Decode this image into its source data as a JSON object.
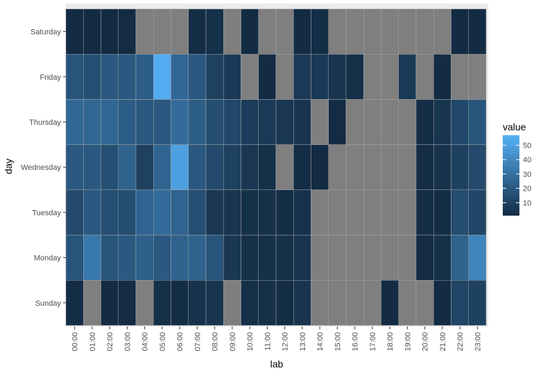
{
  "chart_data": {
    "type": "heatmap",
    "title": "",
    "xlabel": "lab",
    "ylabel": "day",
    "x": [
      "00:00",
      "01:00",
      "02:00",
      "03:00",
      "04:00",
      "05:00",
      "06:00",
      "07:00",
      "08:00",
      "09:00",
      "10:00",
      "11:00",
      "12:00",
      "13:00",
      "14:00",
      "15:00",
      "16:00",
      "17:00",
      "18:00",
      "19:00",
      "20:00",
      "21:00",
      "22:00",
      "23:00"
    ],
    "y": [
      "Sunday",
      "Monday",
      "Tuesday",
      "Wednesday",
      "Thursday",
      "Friday",
      "Saturday"
    ],
    "values": [
      [
        2,
        null,
        1,
        1,
        null,
        3,
        2,
        4,
        5,
        null,
        3,
        3,
        2,
        5,
        null,
        null,
        null,
        null,
        1,
        null,
        null,
        1,
        12,
        10
      ],
      [
        18,
        33,
        18,
        20,
        23,
        20,
        24,
        24,
        18,
        6,
        3,
        3,
        3,
        5,
        null,
        null,
        null,
        null,
        null,
        null,
        1,
        3,
        24,
        38
      ],
      [
        14,
        20,
        16,
        15,
        25,
        28,
        25,
        16,
        6,
        5,
        3,
        3,
        2,
        4,
        null,
        null,
        null,
        null,
        null,
        null,
        2,
        2,
        15,
        12
      ],
      [
        20,
        20,
        16,
        24,
        10,
        25,
        50,
        20,
        14,
        10,
        6,
        3,
        null,
        2,
        1,
        null,
        null,
        null,
        null,
        null,
        2,
        4,
        10,
        14
      ],
      [
        26,
        26,
        26,
        22,
        20,
        20,
        28,
        22,
        15,
        13,
        8,
        7,
        6,
        5,
        null,
        1,
        null,
        null,
        null,
        null,
        2,
        5,
        13,
        18
      ],
      [
        18,
        16,
        20,
        20,
        22,
        55,
        26,
        20,
        10,
        7,
        null,
        1,
        null,
        7,
        7,
        5,
        3,
        null,
        null,
        7,
        null,
        1,
        null,
        null
      ],
      [
        1,
        1,
        1,
        1,
        null,
        null,
        null,
        2,
        3,
        null,
        1,
        null,
        null,
        1,
        2,
        null,
        null,
        null,
        null,
        null,
        null,
        null,
        1,
        1
      ]
    ],
    "legend": {
      "title": "value",
      "ticks": [
        10,
        20,
        30,
        40,
        50
      ],
      "position": "right"
    },
    "colorscale": {
      "low": "#132B43",
      "high": "#56B1F7",
      "na": "#7F7F7F",
      "min": 1,
      "max": 57
    },
    "panel_background": "#EBEBEB",
    "grid": true
  }
}
